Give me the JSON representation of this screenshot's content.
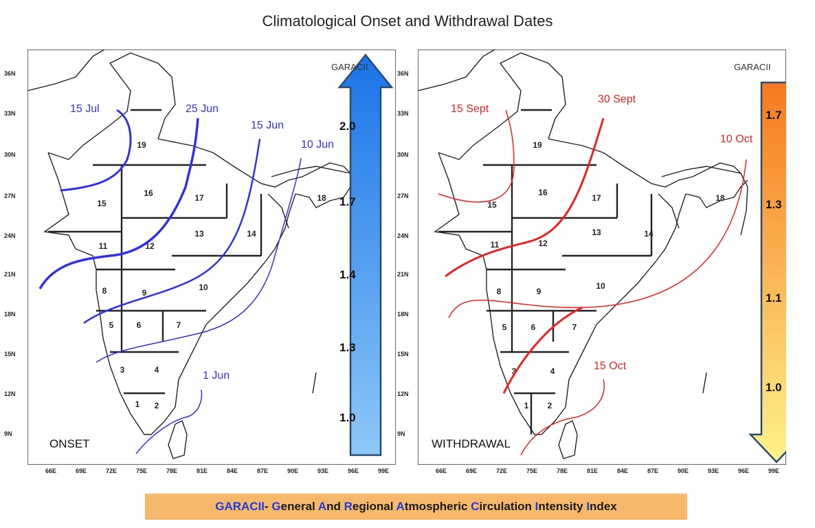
{
  "title": "Climatological Onset and Withdrawal Dates",
  "latitude_ticks": [
    "36N",
    "33N",
    "30N",
    "27N",
    "24N",
    "21N",
    "18N",
    "15N",
    "12N",
    "9N"
  ],
  "longitude_ticks": [
    "66E",
    "69E",
    "72E",
    "75E",
    "78E",
    "81E",
    "84E",
    "87E",
    "90E",
    "93E",
    "96E",
    "99E"
  ],
  "region_numbers": [
    "1",
    "2",
    "3",
    "4",
    "5",
    "6",
    "7",
    "8",
    "9",
    "10",
    "11",
    "12",
    "13",
    "14",
    "15",
    "16",
    "17",
    "18",
    "19"
  ],
  "onset": {
    "panel_label": "ONSET",
    "scale_title": "GARACII",
    "scale_values": [
      "2.0",
      "1.7",
      "1.4",
      "1.3",
      "1.0"
    ],
    "isochrones": [
      "15 Jul",
      "25 Jun",
      "15 Jun",
      "10 Jun",
      "1 Jun"
    ],
    "colors": {
      "line": "#3030e8",
      "arrow_top": "#1a73e8",
      "arrow_bottom": "#8cc8f8"
    }
  },
  "withdrawal": {
    "panel_label": "WITHDRAWAL",
    "scale_title": "GARACII",
    "scale_values": [
      "1.7",
      "1.3",
      "1.1",
      "1.0"
    ],
    "isochrones": [
      "15 Sept",
      "30 Sept",
      "10 Oct",
      "15 Oct"
    ],
    "colors": {
      "line": "#ee2020",
      "arrow_top": "#f57920",
      "arrow_bottom": "#fff28a"
    }
  },
  "footer": {
    "acronym": "GARACII",
    "separator": "- ",
    "words": [
      {
        "initial": "G",
        "rest": "eneral "
      },
      {
        "initial": "A",
        "rest": "nd "
      },
      {
        "initial": "R",
        "rest": "egional "
      },
      {
        "initial": "A",
        "rest": "tmospheric "
      },
      {
        "initial": "C",
        "rest": "irculation "
      },
      {
        "initial": "I",
        "rest": "ntensity "
      },
      {
        "initial": "I",
        "rest": "ndex"
      }
    ]
  }
}
